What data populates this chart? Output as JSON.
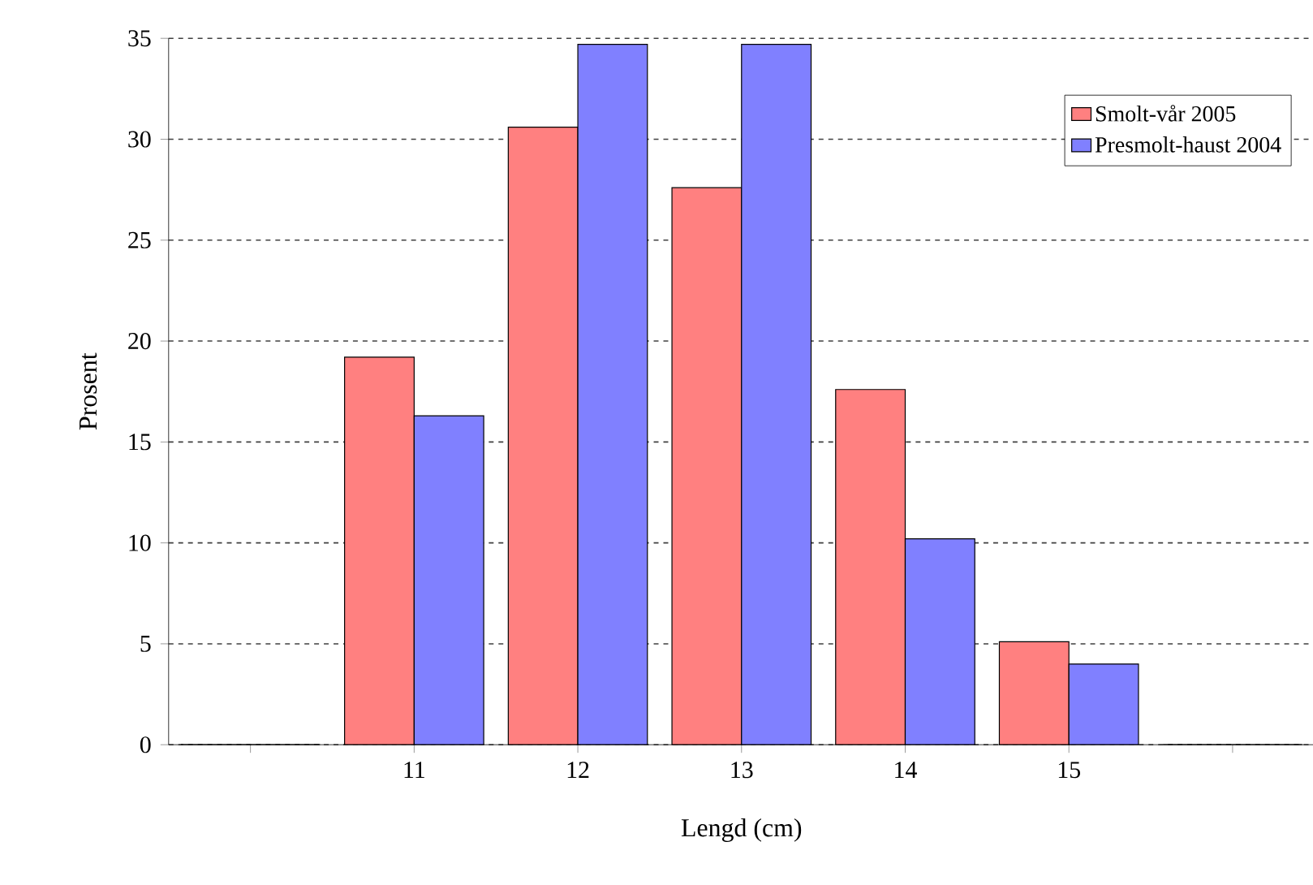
{
  "chart_data": {
    "type": "bar",
    "xlabel": "Lengd (cm)",
    "ylabel": "Prosent",
    "categories": [
      null,
      "11",
      "12",
      "13",
      "14",
      "15",
      null
    ],
    "series": [
      {
        "name": "Smolt-vår 2005",
        "color": "#ff8080",
        "values": [
          0,
          19.2,
          30.6,
          27.6,
          17.6,
          5.1,
          0
        ]
      },
      {
        "name": "Presmolt-haust 2004",
        "color": "#8080ff",
        "values": [
          0,
          16.3,
          34.7,
          34.7,
          10.2,
          4.0,
          0
        ]
      }
    ],
    "ylim": [
      0,
      35
    ],
    "yticks": [
      0,
      5,
      10,
      15,
      20,
      25,
      30,
      35
    ],
    "grid": "y",
    "legend": "top right"
  }
}
